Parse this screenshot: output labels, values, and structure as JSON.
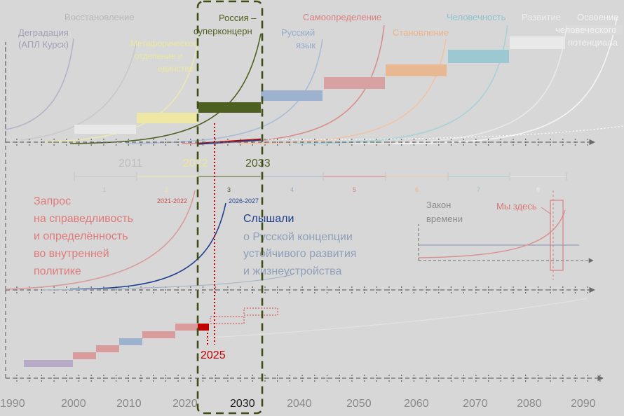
{
  "colors": {
    "background": "#d7d7d7",
    "axis": "#5a5a5a",
    "gray": "#a6a6a6",
    "yellow": "#eee8a4",
    "green": "#4e6020",
    "blue": "#8ea6c4",
    "pink": "#d89a9a",
    "orange": "#e7b08e",
    "teal": "#8ec3cc",
    "white": "#f0f0f0",
    "red": "#c00000",
    "navy": "#1f3f8f"
  },
  "stages": {
    "degradation": "Деградация",
    "degradation_sub": "(АПЛ Курск)",
    "restoration": "Восстановление",
    "yellow_1": "Метафорическое",
    "yellow_2": "отделение  и",
    "yellow_3": "единство",
    "russia_1": "Россия –",
    "russia_2": "суперконцерн",
    "russian_lang_1": "Русский",
    "russian_lang_2": "язык",
    "selfdetermination": "Самоопределение",
    "formation": "Становление",
    "humanity": "Человечность",
    "development": "Развитие",
    "mastery_1": "Освоение",
    "mastery_2": "человеческого",
    "mastery_3": "потенциала"
  },
  "year_marks": {
    "y2011": "2011",
    "y2022": "2022",
    "y2033": "2033"
  },
  "stage_numbers": [
    "1",
    "2",
    "3",
    "4",
    "5",
    "6",
    "7",
    "8"
  ],
  "middle": {
    "range_2021": "2021-2022",
    "range_2026": "2026-2027",
    "request_1": "Запрос",
    "request_2": "на справедливость",
    "request_3": "и определённость",
    "request_4": "во внутренней",
    "request_5": "политике",
    "heard_1": "Слышали",
    "heard_2": "о Русской концепции",
    "heard_3": "устойчивого развития",
    "heard_4": "и жизнеустройства"
  },
  "inset": {
    "law_1": "Закон",
    "law_2": "времени",
    "we_here": "Мы здесь"
  },
  "bottom": {
    "year_2025": "2025",
    "axis_years": [
      "1990",
      "2000",
      "2010",
      "2020",
      "2030",
      "2040",
      "2050",
      "2060",
      "2070",
      "2080",
      "2090"
    ]
  }
}
